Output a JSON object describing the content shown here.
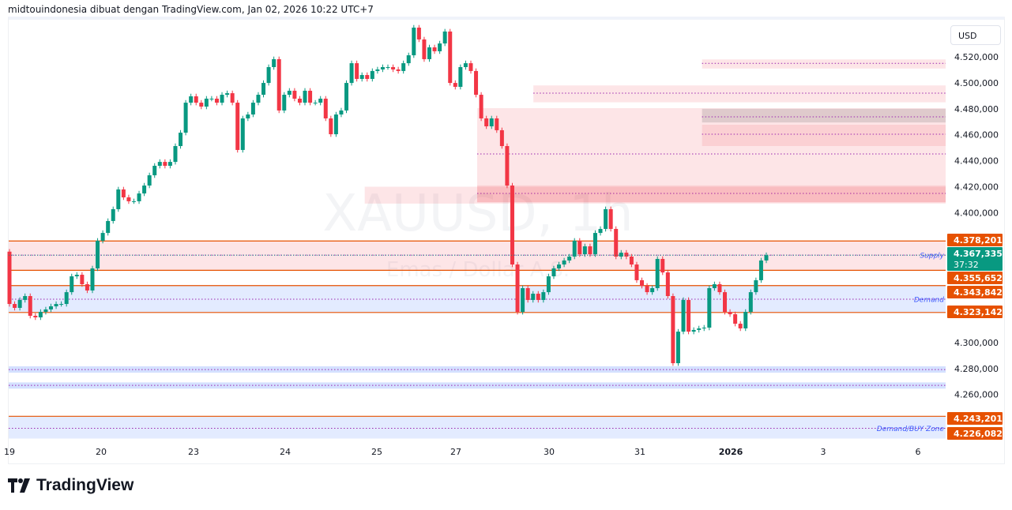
{
  "header": {
    "caption": "midtouindonesia dibuat dengan TradingView.com, Jan 02, 2026 10:22 UTC+7"
  },
  "currency_button": "USD",
  "logo": {
    "text": "TradingView"
  },
  "watermark": {
    "symbol": "XAUUSD, 1h",
    "description": "Emas / Dollar A.S."
  },
  "colors": {
    "up": "#089981",
    "down": "#f23645",
    "zone_line": "#e65100",
    "supply_fill": "#fce4e6",
    "demand_fill": "#e1eafd",
    "dotted": "#9c27b0",
    "label_text": "#3d5afe"
  },
  "chart_data": {
    "type": "candlestick",
    "symbol": "XAUUSD",
    "interval": "1h",
    "ylim": [
      4212,
      4548
    ],
    "y_ticks": [
      "4.520,000",
      "4.500,000",
      "4.480,000",
      "4.460,000",
      "4.440,000",
      "4.420,000",
      "4.400,000",
      "4.300,000",
      "4.280,000",
      "4.260,000"
    ],
    "y_tick_values": [
      4520,
      4500,
      4480,
      4460,
      4440,
      4420,
      4400,
      4300,
      4280,
      4260
    ],
    "x_ticks": [
      "19",
      "20",
      "23",
      "24",
      "25",
      "27",
      "30",
      "31",
      "2026",
      "3",
      "6"
    ],
    "first_open": 4370,
    "closes": [
      4329.7,
      4326.7,
      4332.8,
      4335.8,
      4320.6,
      4319.4,
      4323.6,
      4325.5,
      4327.9,
      4329.7,
      4329.7,
      4338.8,
      4351,
      4352.2,
      4344.9,
      4340.1,
      4357.1,
      4378.4,
      4384.4,
      4393.6,
      4402.7,
      4417.9,
      4411.8,
      4408.8,
      4408.8,
      4414.8,
      4420.9,
      4428.8,
      4436.1,
      4439.1,
      4436.1,
      4439.1,
      4451.3,
      4461.6,
      4484.7,
      4489.6,
      4484.7,
      4481.7,
      4487.8,
      4487.8,
      4484.7,
      4490.8,
      4492,
      4484.7,
      4448.3,
      4472.6,
      4475.6,
      4484.7,
      4490.8,
      4499.9,
      4512.1,
      4518.2,
      4478.7,
      4490.8,
      4493.9,
      4487.8,
      4484.7,
      4493.9,
      4484.7,
      4484.7,
      4487.8,
      4472.6,
      4460.4,
      4475.6,
      4478.7,
      4499.9,
      4515.1,
      4503,
      4506,
      4503,
      4509.1,
      4510.3,
      4512.1,
      4512.1,
      4510.3,
      4509.1,
      4515.1,
      4521.2,
      4542.5,
      4533.4,
      4518.2,
      4527.3,
      4524.3,
      4530.3,
      4539.5,
      4499.9,
      4496.9,
      4512.1,
      4515.1,
      4509.1,
      4490.8,
      4472.6,
      4466.5,
      4472.6,
      4463.5,
      4451.3,
      4420.9,
      4360.1,
      4323.6,
      4341.9,
      4332.8,
      4337.6,
      4332.8,
      4338.8,
      4351,
      4357.1,
      4360.1,
      4363.2,
      4366.2,
      4378.4,
      4368,
      4374.1,
      4368,
      4384.4,
      4387.5,
      4402.7,
      4387.5,
      4366.2,
      4369.2,
      4366.2,
      4360.1,
      4348,
      4343.7,
      4338.8,
      4341.9,
      4364.4,
      4354,
      4335.8,
      4284.1,
      4308.4,
      4332.8,
      4308.4,
      4309.7,
      4310.9,
      4311.5,
      4341.9,
      4344.9,
      4338.8,
      4323.6,
      4321.8,
      4314.5,
      4310.9,
      4323.6,
      4338.8,
      4348,
      4363.2,
      4367.3
    ],
    "zones": [
      {
        "top": 4518,
        "bottom": 4511,
        "mid": 4515,
        "start": 0.74,
        "kind": "supply"
      },
      {
        "top": 4498,
        "bottom": 4485,
        "mid": 4492,
        "start": 0.56,
        "kind": "supply"
      },
      {
        "top": 4480.5,
        "bottom": 4408,
        "mid": 4445.2,
        "start": 0.5,
        "kind": "supply"
      },
      {
        "top": 4480,
        "bottom": 4469.5,
        "mid": 4473.8,
        "start": 0.74,
        "kind": "gray"
      },
      {
        "top": 4467.7,
        "bottom": 4451.3,
        "mid": 4460.4,
        "start": 0.74,
        "kind": "supply2"
      },
      {
        "top": 4421,
        "bottom": 4408,
        "mid": 4414.8,
        "start": 0.5,
        "kind": "supply2"
      },
      {
        "top": 4420,
        "bottom": 4407,
        "mid": null,
        "start": 0.38,
        "kind": "supply"
      },
      {
        "top": 4378.201,
        "bottom": 4355.652,
        "mid": 4367.335,
        "start": 0,
        "kind": "supply-line",
        "label": "Supply"
      },
      {
        "top": 4343.842,
        "bottom": 4323.142,
        "mid": 4333.4,
        "start": 0,
        "kind": "demand-line",
        "label": "Demand"
      },
      {
        "top": 4281.7,
        "bottom": 4276.8,
        "mid": 4279.2,
        "start": 0,
        "kind": "demand"
      },
      {
        "top": 4269.3,
        "bottom": 4264.5,
        "mid": 4267,
        "start": 0,
        "kind": "demand"
      },
      {
        "top": 4243.201,
        "bottom": 4226.082,
        "mid": 4234,
        "start": 0,
        "kind": "demand-line",
        "label": "Demand/BUY Zone"
      }
    ],
    "price_labels": [
      {
        "text": "4.378,201",
        "value": 4378.201,
        "color": "#e65100"
      },
      {
        "text": "4.367,335",
        "value": 4367.335,
        "color": "#089981",
        "sub": "37:32"
      },
      {
        "text": "4.355,652",
        "value": 4355.652,
        "color": "#e65100"
      },
      {
        "text": "4.343,842",
        "value": 4343.842,
        "color": "#e65100"
      },
      {
        "text": "4.323,142",
        "value": 4323.142,
        "color": "#e65100"
      },
      {
        "text": "4.243,201",
        "value": 4243.201,
        "color": "#e65100"
      },
      {
        "text": "4.226,082",
        "value": 4226.082,
        "color": "#e65100"
      }
    ]
  }
}
